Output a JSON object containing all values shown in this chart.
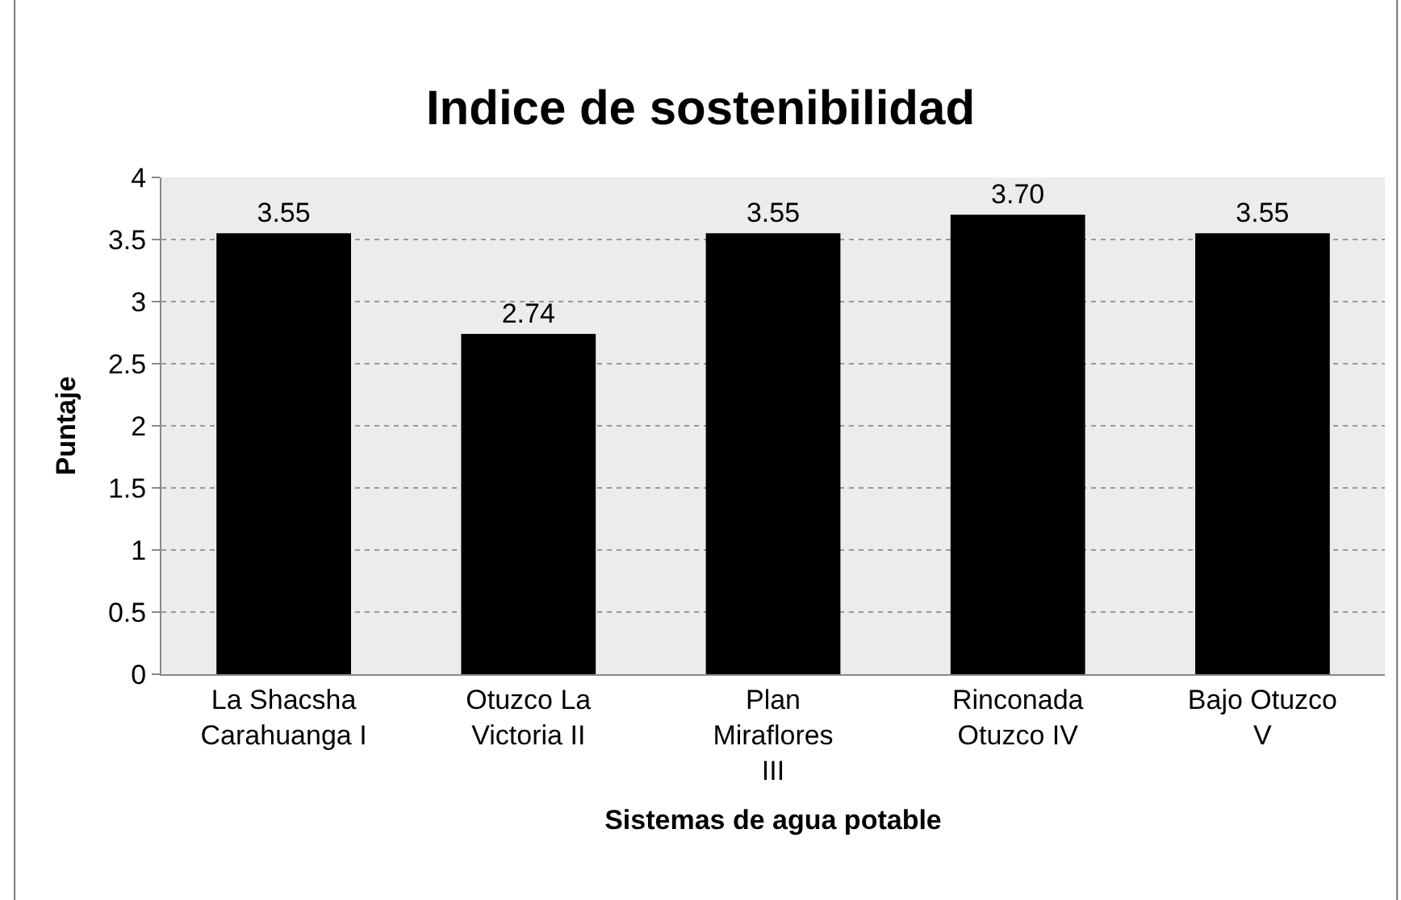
{
  "chart_data": {
    "type": "bar",
    "title": "Indice de sostenibilidad",
    "xlabel": "Sistemas de agua potable",
    "ylabel": "Puntaje",
    "categories": [
      "La Shacsha Carahuanga I",
      "Otuzco La Victoria II",
      "Plan Miraflores III",
      "Rinconada Otuzco IV",
      "Bajo Otuzco V"
    ],
    "values": [
      3.55,
      2.74,
      3.55,
      3.7,
      3.55
    ],
    "value_labels": [
      "3.55",
      "2.74",
      "3.55",
      "3.70",
      "3.55"
    ],
    "color": "#000000",
    "ylim": [
      0,
      4
    ],
    "yticks": [
      0,
      0.5,
      1,
      1.5,
      2,
      2.5,
      3,
      3.5,
      4
    ],
    "grid": "y",
    "legend": false
  }
}
